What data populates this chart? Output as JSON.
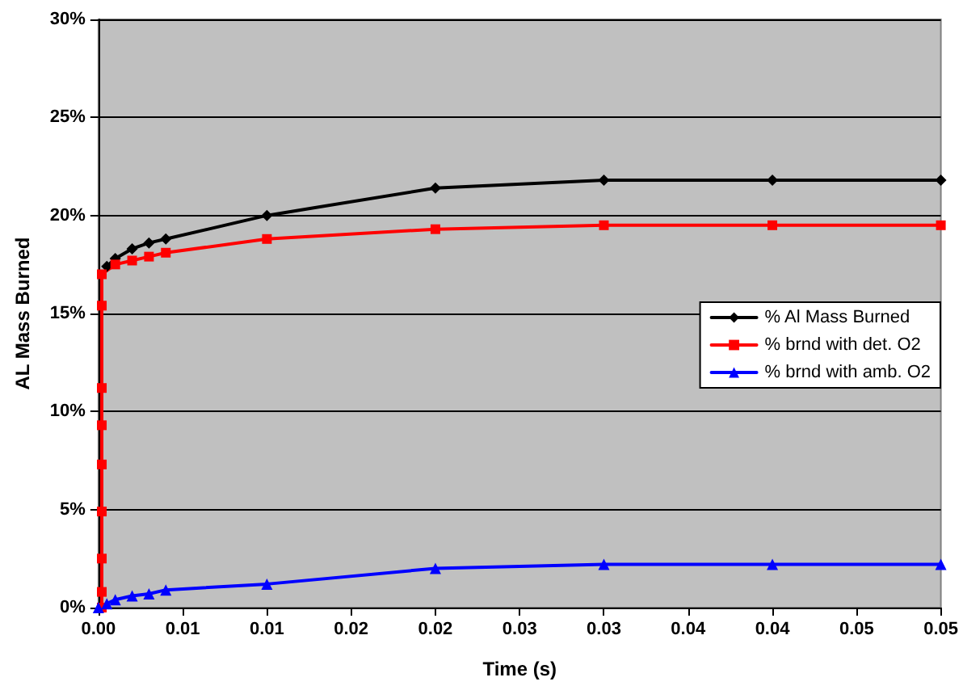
{
  "chart_data": {
    "type": "line",
    "xlabel": "Time (s)",
    "ylabel": "AL Mass Burned",
    "xlim": [
      0,
      0.05
    ],
    "xticks": [
      {
        "value": 0,
        "label": "0.00"
      },
      {
        "value": 0.005,
        "label": "0.01"
      },
      {
        "value": 0.01,
        "label": "0.01"
      },
      {
        "value": 0.015,
        "label": "0.02"
      },
      {
        "value": 0.02,
        "label": "0.02"
      },
      {
        "value": 0.025,
        "label": "0.03"
      },
      {
        "value": 0.03,
        "label": "0.03"
      },
      {
        "value": 0.035,
        "label": "0.04"
      },
      {
        "value": 0.04,
        "label": "0.04"
      },
      {
        "value": 0.045,
        "label": "0.05"
      },
      {
        "value": 0.05,
        "label": "0.05"
      }
    ],
    "ylim": [
      0,
      30
    ],
    "yticks": [
      {
        "value": 0,
        "label": "0%"
      },
      {
        "value": 5,
        "label": "5%"
      },
      {
        "value": 10,
        "label": "10%"
      },
      {
        "value": 15,
        "label": "15%"
      },
      {
        "value": 20,
        "label": "20%"
      },
      {
        "value": 25,
        "label": "25%"
      },
      {
        "value": 30,
        "label": "30%"
      }
    ],
    "grid": "y",
    "legend": "right",
    "line_style": "solid",
    "series": [
      {
        "name": "% Al Mass Burned",
        "color": "#000000",
        "marker": "diamond",
        "x": [
          0.0005,
          0.001,
          0.002,
          0.003,
          0.004,
          0.01,
          0.02,
          0.03,
          0.04,
          0.05
        ],
        "values": [
          17.4,
          17.8,
          18.3,
          18.6,
          18.8,
          20.0,
          21.4,
          21.8,
          21.8,
          21.8
        ]
      },
      {
        "name": "% brnd with det. O2",
        "color": "#ff0000",
        "marker": "square",
        "x": [
          0.0002,
          0.0002,
          0.0002,
          0.0002,
          0.0002,
          0.0002,
          0.0002,
          0.0002,
          0.0002,
          0.001,
          0.002,
          0.003,
          0.004,
          0.01,
          0.02,
          0.03,
          0.04,
          0.05
        ],
        "values": [
          0,
          0.8,
          2.5,
          4.9,
          7.3,
          9.3,
          11.2,
          15.4,
          17.0,
          17.5,
          17.7,
          17.9,
          18.1,
          18.8,
          19.3,
          19.5,
          19.5,
          19.5
        ]
      },
      {
        "name": "% brnd with amb. O2",
        "color": "#0000ff",
        "marker": "triangle",
        "x": [
          0,
          0.0005,
          0.001,
          0.002,
          0.003,
          0.004,
          0.01,
          0.02,
          0.03,
          0.04,
          0.05
        ],
        "values": [
          0,
          0.2,
          0.4,
          0.6,
          0.7,
          0.9,
          1.2,
          2.0,
          2.2,
          2.2,
          2.2
        ]
      }
    ]
  }
}
